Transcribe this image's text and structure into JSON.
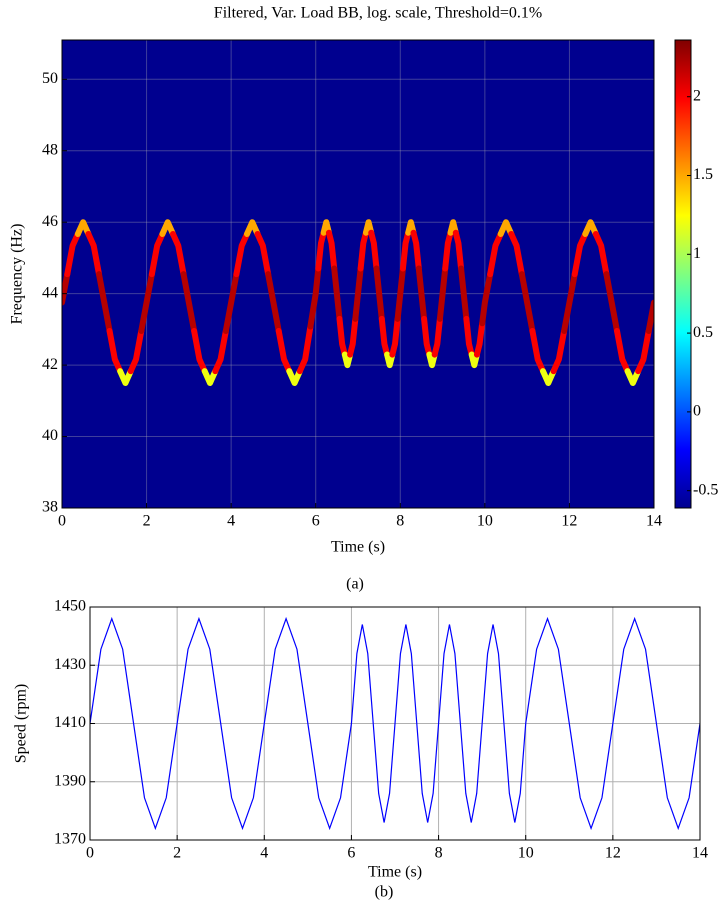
{
  "chart_data": [
    {
      "type": "spectrogram",
      "title": "Filtered, Var. Load BB, log. scale, Threshold=0.1%",
      "xlabel": "Time (s)",
      "ylabel": "Frequency (Hz)",
      "caption": "(a)",
      "x": [
        0,
        0.25,
        0.5,
        0.75,
        1,
        1.25,
        1.5,
        1.75,
        2,
        2.25,
        2.5,
        2.75,
        3,
        3.25,
        3.5,
        3.75,
        4,
        4.25,
        4.5,
        4.75,
        5,
        5.25,
        5.5,
        5.75,
        6,
        6.125,
        6.25,
        6.375,
        6.5,
        6.625,
        6.75,
        6.875,
        7,
        7.125,
        7.25,
        7.375,
        7.5,
        7.625,
        7.75,
        7.875,
        8,
        8.125,
        8.25,
        8.375,
        8.5,
        8.625,
        8.75,
        8.875,
        9,
        9.125,
        9.25,
        9.375,
        9.5,
        9.625,
        9.75,
        9.875,
        10,
        10.25,
        10.5,
        10.75,
        11,
        11.25,
        11.5,
        11.75,
        12,
        12.25,
        12.5,
        12.75,
        13,
        13.25,
        13.5,
        13.75,
        14
      ],
      "y": [
        43.75,
        45.34,
        46,
        45.34,
        43.75,
        42.16,
        41.5,
        42.16,
        43.75,
        45.34,
        46,
        45.34,
        43.75,
        42.16,
        41.5,
        42.16,
        43.75,
        45.34,
        46,
        45.34,
        43.75,
        42.16,
        41.5,
        42.16,
        44,
        45.41,
        46,
        45.41,
        44,
        42.59,
        42,
        42.59,
        44,
        45.41,
        46,
        45.41,
        44,
        42.59,
        42,
        42.59,
        44,
        45.41,
        46,
        45.41,
        44,
        42.59,
        42,
        42.59,
        44,
        45.41,
        46,
        45.41,
        44,
        42.59,
        42,
        42.59,
        43.75,
        45.34,
        46,
        45.34,
        43.75,
        42.16,
        41.5,
        42.16,
        43.75,
        45.34,
        46,
        45.34,
        43.75,
        42.16,
        41.5,
        42.16,
        43.75
      ],
      "values": [
        2.2,
        2,
        1.5,
        2,
        2.2,
        2,
        1.2,
        2,
        2.2,
        2,
        1.5,
        2,
        2.2,
        2,
        1.2,
        2,
        2.2,
        2,
        1.5,
        2,
        2.2,
        2,
        1.2,
        2,
        2.2,
        2,
        1.5,
        2,
        2.2,
        2,
        1.2,
        2,
        2.2,
        2,
        1.5,
        2,
        2.2,
        2,
        1.2,
        2,
        2.2,
        2,
        1.5,
        2,
        2.2,
        2,
        1.2,
        2,
        2.2,
        2,
        1.5,
        2,
        2.2,
        2,
        1.2,
        2,
        2.2,
        2,
        1.5,
        2,
        2.2,
        2,
        1.2,
        2,
        2.2,
        2,
        1.5,
        2,
        2.2,
        2,
        1.2,
        2,
        2.2
      ],
      "xlim": [
        0,
        14
      ],
      "xticks": [
        0,
        2,
        4,
        6,
        8,
        10,
        12,
        14
      ],
      "ylim": [
        38,
        51.1
      ],
      "yticks": [
        38,
        40,
        42,
        44,
        46,
        48,
        50
      ],
      "clim": [
        -0.61,
        2.36
      ],
      "cticks": [
        -0.5,
        0,
        0.5,
        1,
        1.5,
        2
      ],
      "colormap": "jet",
      "background_color": "#00008f",
      "grid": true
    },
    {
      "type": "line",
      "xlabel": "Time (s)",
      "ylabel": "Speed (rpm)",
      "caption": "(b)",
      "x": [
        0,
        0.25,
        0.5,
        0.75,
        1,
        1.25,
        1.5,
        1.75,
        2,
        2.25,
        2.5,
        2.75,
        3,
        3.25,
        3.5,
        3.75,
        4,
        4.25,
        4.5,
        4.75,
        5,
        5.25,
        5.5,
        5.75,
        6,
        6.125,
        6.25,
        6.375,
        6.5,
        6.625,
        6.75,
        6.875,
        7,
        7.125,
        7.25,
        7.375,
        7.5,
        7.625,
        7.75,
        7.875,
        8,
        8.125,
        8.25,
        8.375,
        8.5,
        8.625,
        8.75,
        8.875,
        9,
        9.125,
        9.25,
        9.375,
        9.5,
        9.625,
        9.75,
        9.875,
        10,
        10.25,
        10.5,
        10.75,
        11,
        11.25,
        11.5,
        11.75,
        12,
        12.25,
        12.5,
        12.75,
        13,
        13.25,
        13.5,
        13.75,
        14
      ],
      "series": [
        {
          "color": "#0000ff",
          "values": [
            1410,
            1435.5,
            1446,
            1435.5,
            1410,
            1384.5,
            1374,
            1384.5,
            1410,
            1435.5,
            1446,
            1435.5,
            1410,
            1384.5,
            1374,
            1384.5,
            1410,
            1435.5,
            1446,
            1435.5,
            1410,
            1384.5,
            1374,
            1384.5,
            1410,
            1434,
            1444,
            1434,
            1410,
            1386,
            1376,
            1386,
            1410,
            1434,
            1444,
            1434,
            1410,
            1386,
            1376,
            1386,
            1410,
            1434,
            1444,
            1434,
            1410,
            1386,
            1376,
            1386,
            1410,
            1434,
            1444,
            1434,
            1410,
            1386,
            1376,
            1386,
            1410,
            1435.5,
            1446,
            1435.5,
            1410,
            1384.5,
            1374,
            1384.5,
            1410,
            1435.5,
            1446,
            1435.5,
            1410,
            1384.5,
            1374,
            1384.5,
            1410
          ]
        }
      ],
      "xlim": [
        0,
        14
      ],
      "xticks": [
        0,
        2,
        4,
        6,
        8,
        10,
        12,
        14
      ],
      "ylim": [
        1370,
        1450
      ],
      "yticks": [
        1370,
        1390,
        1410,
        1430,
        1450
      ],
      "grid": true
    }
  ]
}
